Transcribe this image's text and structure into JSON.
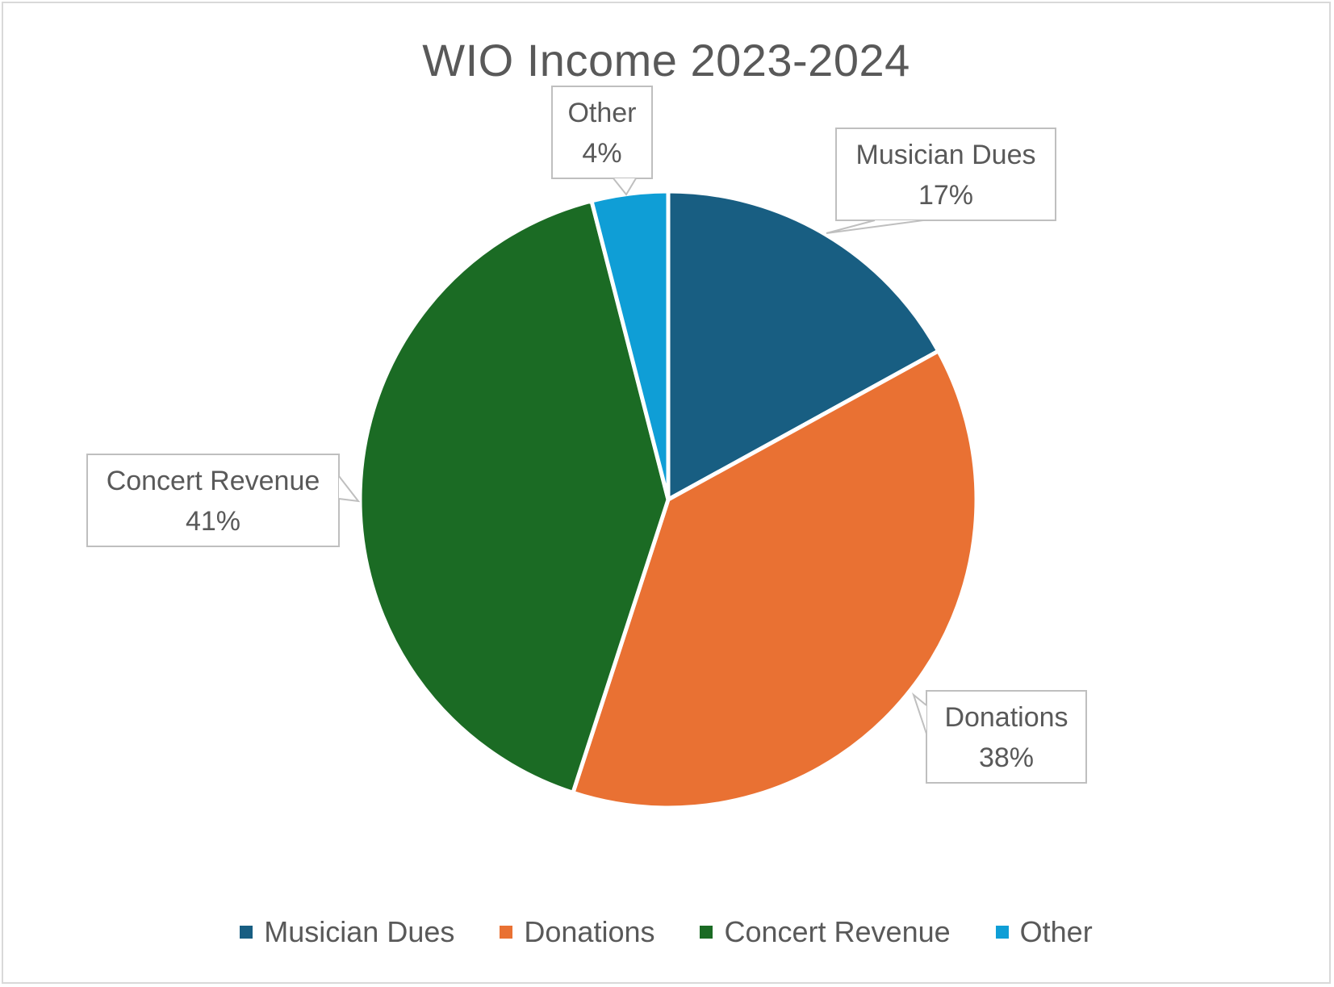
{
  "chart_data": {
    "type": "pie",
    "title": "WIO Income 2023-2024",
    "categories": [
      "Musician Dues",
      "Donations",
      "Concert Revenue",
      "Other"
    ],
    "values": [
      17,
      38,
      41,
      4
    ],
    "unit": "%",
    "data_labels": [
      {
        "name": "Musician Dues",
        "value": "17%"
      },
      {
        "name": "Donations",
        "value": "38%"
      },
      {
        "name": "Concert Revenue",
        "value": "41%"
      },
      {
        "name": "Other",
        "value": "4%"
      }
    ],
    "colors": [
      "#185e82",
      "#e97133",
      "#1b6b24",
      "#0f9ed6"
    ],
    "legend_position": "bottom",
    "legend": [
      {
        "label": "Musician Dues",
        "color": "#185e82"
      },
      {
        "label": "Donations",
        "color": "#e97133"
      },
      {
        "label": "Concert Revenue",
        "color": "#1b6b24"
      },
      {
        "label": "Other",
        "color": "#0f9ed6"
      }
    ]
  }
}
